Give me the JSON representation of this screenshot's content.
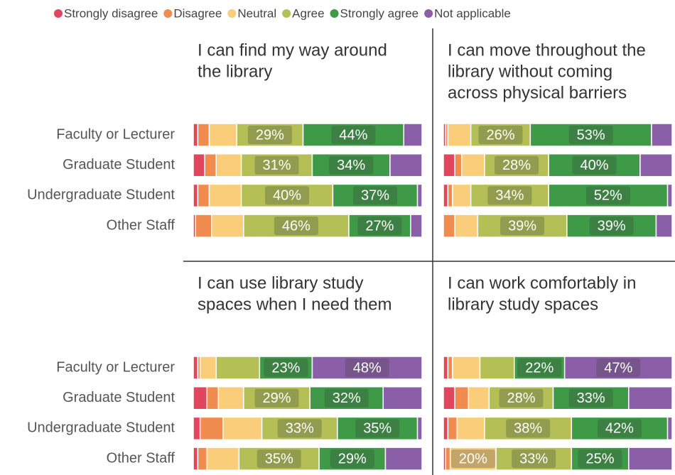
{
  "chart_data": [
    {
      "type": "bar",
      "orientation": "horizontal",
      "stacked": true,
      "title": [
        "I can find my way around",
        "the library"
      ],
      "categories": [
        "Faculty or Lecturer",
        "Graduate Student",
        "Undergraduate Student",
        "Other Staff"
      ],
      "xlim": [
        0,
        100
      ],
      "series": [
        {
          "name": "Strongly disagree",
          "color": "#e0465e",
          "values": [
            2,
            5,
            2,
            1
          ]
        },
        {
          "name": "Disagree",
          "color": "#f08c50",
          "values": [
            5,
            5,
            5,
            7
          ]
        },
        {
          "name": "Neutral",
          "color": "#f9cd7a",
          "values": [
            12,
            11,
            14,
            14
          ]
        },
        {
          "name": "Agree",
          "color": "#b4bf55",
          "values": [
            29,
            31,
            40,
            46
          ],
          "value_labels": [
            "29%",
            "31%",
            "40%",
            "46%"
          ]
        },
        {
          "name": "Strongly agree",
          "color": "#3e9a47",
          "values": [
            44,
            34,
            37,
            27
          ],
          "value_labels": [
            "44%",
            "34%",
            "37%",
            "27%"
          ]
        },
        {
          "name": "Not applicable",
          "color": "#8b5fa8",
          "values": [
            8,
            14,
            2,
            5
          ]
        }
      ]
    },
    {
      "type": "bar",
      "orientation": "horizontal",
      "stacked": true,
      "title": [
        "I can move throughout the",
        "library without coming",
        "across physical barriers"
      ],
      "categories": [
        "Faculty or Lecturer",
        "Graduate Student",
        "Undergraduate Student",
        "Other Staff"
      ],
      "xlim": [
        0,
        100
      ],
      "series": [
        {
          "name": "Strongly disagree",
          "color": "#e0465e",
          "values": [
            1,
            5,
            2,
            0
          ]
        },
        {
          "name": "Disagree",
          "color": "#f08c50",
          "values": [
            1,
            3,
            2,
            5
          ]
        },
        {
          "name": "Neutral",
          "color": "#f9cd7a",
          "values": [
            10,
            10,
            8,
            10
          ]
        },
        {
          "name": "Agree",
          "color": "#b4bf55",
          "values": [
            26,
            28,
            34,
            39
          ],
          "value_labels": [
            "26%",
            "28%",
            "34%",
            "39%"
          ]
        },
        {
          "name": "Strongly agree",
          "color": "#3e9a47",
          "values": [
            53,
            40,
            52,
            39
          ],
          "value_labels": [
            "53%",
            "40%",
            "52%",
            "39%"
          ]
        },
        {
          "name": "Not applicable",
          "color": "#8b5fa8",
          "values": [
            9,
            14,
            2,
            7
          ]
        }
      ]
    },
    {
      "type": "bar",
      "orientation": "horizontal",
      "stacked": true,
      "title": [
        "I can use library study",
        "spaces when I need them"
      ],
      "categories": [
        "Faculty or Lecturer",
        "Graduate Student",
        "Undergraduate Student",
        "Other Staff"
      ],
      "xlim": [
        0,
        100
      ],
      "series": [
        {
          "name": "Strongly disagree",
          "color": "#e0465e",
          "values": [
            2,
            6,
            3,
            2
          ]
        },
        {
          "name": "Disagree",
          "color": "#f08c50",
          "values": [
            1,
            5,
            10,
            4
          ]
        },
        {
          "name": "Neutral",
          "color": "#f9cd7a",
          "values": [
            7,
            11,
            17,
            14
          ]
        },
        {
          "name": "Agree",
          "color": "#b4bf55",
          "values": [
            19,
            29,
            33,
            35
          ],
          "value_labels": [
            null,
            "29%",
            "33%",
            "35%"
          ]
        },
        {
          "name": "Strongly agree",
          "color": "#3e9a47",
          "values": [
            23,
            32,
            35,
            29
          ],
          "value_labels": [
            "23%",
            "32%",
            "35%",
            "29%"
          ]
        },
        {
          "name": "Not applicable",
          "color": "#8b5fa8",
          "values": [
            48,
            17,
            2,
            16
          ],
          "value_labels": [
            "48%",
            null,
            null,
            null
          ]
        }
      ]
    },
    {
      "type": "bar",
      "orientation": "horizontal",
      "stacked": true,
      "title": [
        "I can work comfortably in",
        "library study spaces"
      ],
      "categories": [
        "Faculty or Lecturer",
        "Graduate Student",
        "Undergraduate Student",
        "Other Staff"
      ],
      "xlim": [
        0,
        100
      ],
      "series": [
        {
          "name": "Strongly disagree",
          "color": "#e0465e",
          "values": [
            2,
            5,
            2,
            1
          ]
        },
        {
          "name": "Disagree",
          "color": "#f08c50",
          "values": [
            2,
            6,
            4,
            2
          ]
        },
        {
          "name": "Neutral",
          "color": "#f9cd7a",
          "values": [
            12,
            9,
            12,
            20
          ],
          "value_labels": [
            null,
            null,
            null,
            "20%"
          ]
        },
        {
          "name": "Agree",
          "color": "#b4bf55",
          "values": [
            15,
            28,
            38,
            33
          ],
          "value_labels": [
            null,
            "28%",
            "38%",
            "33%"
          ]
        },
        {
          "name": "Strongly agree",
          "color": "#3e9a47",
          "values": [
            22,
            33,
            42,
            25
          ],
          "value_labels": [
            "22%",
            "33%",
            "42%",
            "25%"
          ]
        },
        {
          "name": "Not applicable",
          "color": "#8b5fa8",
          "values": [
            47,
            19,
            2,
            19
          ],
          "value_labels": [
            "47%",
            null,
            null,
            null
          ]
        }
      ]
    }
  ]
}
